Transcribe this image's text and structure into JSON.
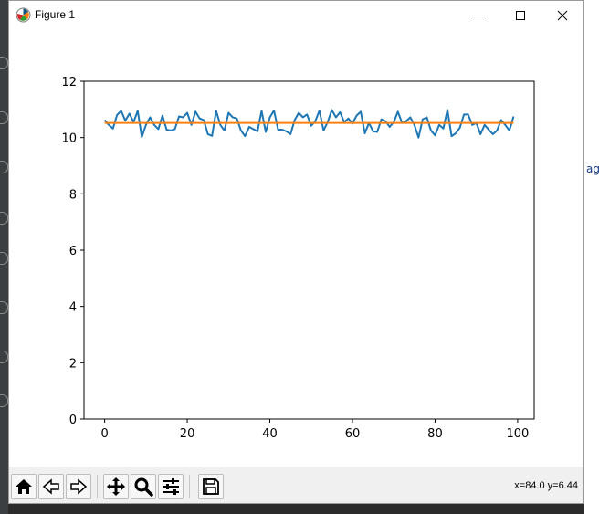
{
  "window": {
    "title": "Figure 1"
  },
  "background_fragment": "ag",
  "toolbar": {
    "buttons": [
      {
        "name": "home",
        "icon": "home-icon"
      },
      {
        "name": "back",
        "icon": "back-arrow-icon"
      },
      {
        "name": "forward",
        "icon": "forward-arrow-icon"
      },
      {
        "name": "pan",
        "icon": "move-icon"
      },
      {
        "name": "zoom",
        "icon": "zoom-icon"
      },
      {
        "name": "configure-subplots",
        "icon": "sliders-icon"
      },
      {
        "name": "save",
        "icon": "save-icon"
      }
    ],
    "coords": "x=84.0 y=6.44"
  },
  "colors": {
    "series_blue": "#1f77b4",
    "series_orange": "#ff7f0e"
  },
  "chart_data": {
    "type": "line",
    "title": "",
    "xlabel": "",
    "ylabel": "",
    "xlim": [
      -5,
      104
    ],
    "ylim": [
      0,
      12
    ],
    "xticks": [
      0,
      20,
      40,
      60,
      80,
      100
    ],
    "yticks": [
      0,
      2,
      4,
      6,
      8,
      10,
      12
    ],
    "grid": false,
    "series": [
      {
        "color": "#1f77b4",
        "x": [
          0,
          1,
          2,
          3,
          4,
          5,
          6,
          7,
          8,
          9,
          10,
          11,
          12,
          13,
          14,
          15,
          16,
          17,
          18,
          19,
          20,
          21,
          22,
          23,
          24,
          25,
          26,
          27,
          28,
          29,
          30,
          31,
          32,
          33,
          34,
          35,
          36,
          37,
          38,
          39,
          40,
          41,
          42,
          43,
          44,
          45,
          46,
          47,
          48,
          49,
          50,
          51,
          52,
          53,
          54,
          55,
          56,
          57,
          58,
          59,
          60,
          61,
          62,
          63,
          64,
          65,
          66,
          67,
          68,
          69,
          70,
          71,
          72,
          73,
          74,
          75,
          76,
          77,
          78,
          79,
          80,
          81,
          82,
          83,
          84,
          85,
          86,
          87,
          88,
          89,
          90,
          91,
          92,
          93,
          94,
          95,
          96,
          97,
          98,
          99
        ],
        "values": [
          10.62,
          10.45,
          10.32,
          10.8,
          10.95,
          10.6,
          10.85,
          10.55,
          10.95,
          10.02,
          10.45,
          10.72,
          10.45,
          10.3,
          10.78,
          10.28,
          10.25,
          10.3,
          10.75,
          10.72,
          10.88,
          10.45,
          10.92,
          10.68,
          10.62,
          10.12,
          10.06,
          10.95,
          10.45,
          10.25,
          10.88,
          10.72,
          10.68,
          10.25,
          10.05,
          10.38,
          10.3,
          10.22,
          10.95,
          10.2,
          10.72,
          10.96,
          10.28,
          10.28,
          10.22,
          10.12,
          10.62,
          10.88,
          10.72,
          10.82,
          10.42,
          10.58,
          10.96,
          10.25,
          10.55,
          10.98,
          10.72,
          10.9,
          10.55,
          10.68,
          10.5,
          10.78,
          10.92,
          10.15,
          10.52,
          10.22,
          10.2,
          10.65,
          10.58,
          10.38,
          10.55,
          10.92,
          10.52,
          10.58,
          10.72,
          10.45,
          10.0,
          10.65,
          10.72,
          10.25,
          10.08,
          10.45,
          10.32,
          10.98,
          10.05,
          10.15,
          10.35,
          10.82,
          10.82,
          10.45,
          10.52,
          10.12,
          10.45,
          10.28,
          10.12,
          10.25,
          10.62,
          10.45,
          10.25,
          10.75
        ]
      },
      {
        "color": "#ff7f0e",
        "x": [
          0,
          99
        ],
        "values": [
          10.52,
          10.52
        ]
      }
    ]
  }
}
